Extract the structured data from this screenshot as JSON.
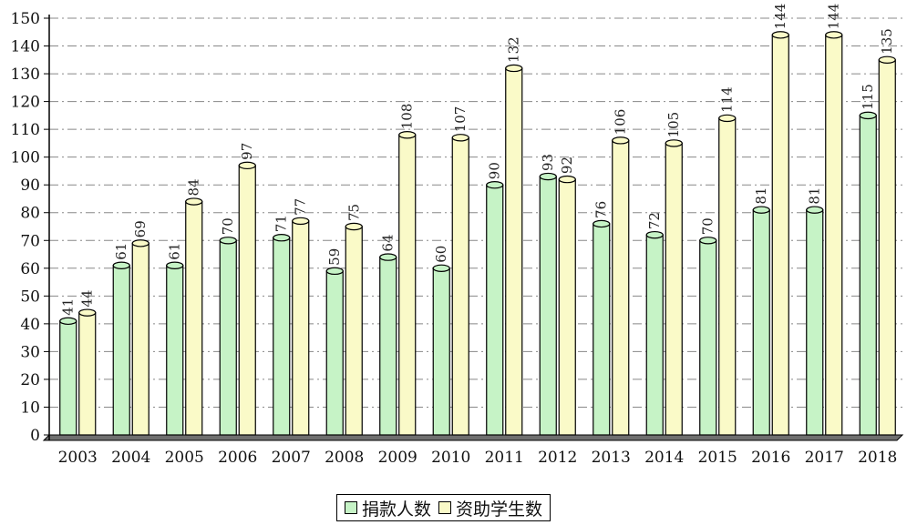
{
  "chart_data": {
    "type": "bar",
    "categories": [
      "2003",
      "2004",
      "2005",
      "2006",
      "2007",
      "2008",
      "2009",
      "2010",
      "2011",
      "2012",
      "2013",
      "2014",
      "2015",
      "2016",
      "2017",
      "2018"
    ],
    "series": [
      {
        "name": "捐款人数",
        "color": "#c6f3c6",
        "values": [
          41,
          61,
          61,
          70,
          71,
          59,
          64,
          60,
          90,
          93,
          76,
          72,
          70,
          81,
          81,
          115
        ]
      },
      {
        "name": "资助学生数",
        "color": "#fafac8",
        "values": [
          44,
          69,
          84,
          97,
          77,
          75,
          108,
          107,
          132,
          92,
          106,
          105,
          114,
          144,
          144,
          135
        ]
      }
    ],
    "ylim": [
      0,
      150
    ],
    "yticks": [
      0,
      10,
      20,
      30,
      40,
      50,
      60,
      70,
      80,
      90,
      100,
      110,
      120,
      130,
      140,
      150
    ],
    "grid": "horizontal dash-dot",
    "legend_position": "bottom-center",
    "data_labels": true
  }
}
